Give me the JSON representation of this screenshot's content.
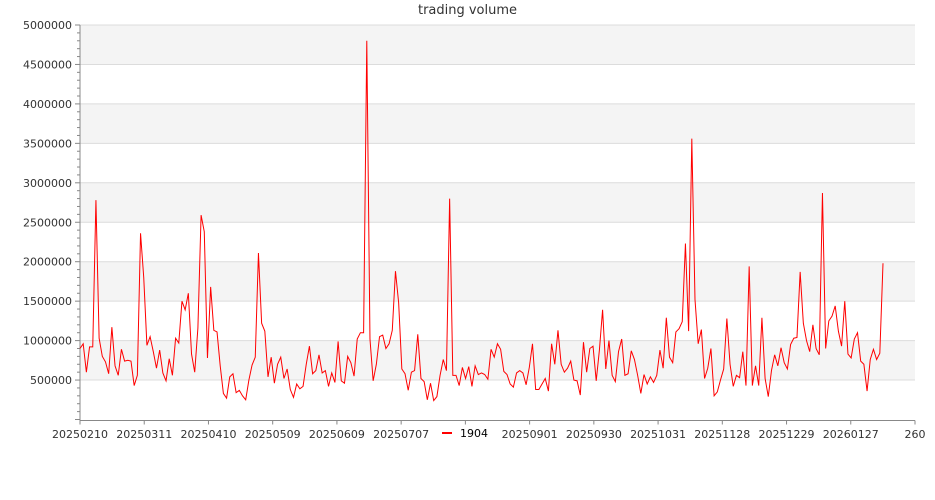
{
  "chart_data": {
    "type": "line",
    "title": "trading volume",
    "xlabel": "",
    "ylabel": "",
    "ylim": [
      0,
      5000000
    ],
    "yticks": [
      500000,
      1000000,
      1500000,
      2000000,
      2500000,
      3000000,
      3500000,
      4000000,
      4500000,
      5000000
    ],
    "xtick_labels": [
      "20250210",
      "20250311",
      "20250410",
      "20250509",
      "20250609",
      "20250707",
      "",
      "20250901",
      "20250930",
      "20251031",
      "20251128",
      "20251229",
      "20260127",
      "260"
    ],
    "grid": "horizontal, alternating bands",
    "legend": "bottom-center",
    "series": [
      {
        "name": "1904",
        "color": "#ff0000",
        "values": [
          900000,
          960000,
          600000,
          920000,
          920000,
          2780000,
          1030000,
          800000,
          730000,
          580000,
          1170000,
          680000,
          560000,
          890000,
          740000,
          750000,
          740000,
          430000,
          560000,
          2360000,
          1800000,
          940000,
          1050000,
          860000,
          650000,
          880000,
          590000,
          490000,
          770000,
          560000,
          1030000,
          970000,
          1500000,
          1390000,
          1600000,
          830000,
          600000,
          1160000,
          2590000,
          2380000,
          780000,
          1680000,
          1130000,
          1110000,
          680000,
          330000,
          270000,
          540000,
          580000,
          340000,
          370000,
          300000,
          250000,
          500000,
          690000,
          790000,
          2110000,
          1220000,
          1120000,
          540000,
          790000,
          460000,
          700000,
          790000,
          520000,
          640000,
          380000,
          280000,
          450000,
          390000,
          420000,
          700000,
          930000,
          580000,
          620000,
          820000,
          590000,
          620000,
          420000,
          590000,
          470000,
          990000,
          490000,
          460000,
          800000,
          720000,
          550000,
          1020000,
          1100000,
          1100000,
          4800000,
          1020000,
          490000,
          700000,
          1050000,
          1070000,
          900000,
          960000,
          1130000,
          1880000,
          1480000,
          640000,
          580000,
          370000,
          600000,
          620000,
          1080000,
          520000,
          480000,
          250000,
          460000,
          240000,
          290000,
          560000,
          760000,
          620000,
          2800000,
          560000,
          560000,
          430000,
          660000,
          520000,
          670000,
          420000,
          680000,
          570000,
          590000,
          570000,
          510000,
          890000,
          790000,
          960000,
          890000,
          610000,
          570000,
          450000,
          410000,
          590000,
          620000,
          590000,
          440000,
          660000,
          960000,
          380000,
          380000,
          450000,
          520000,
          360000,
          960000,
          700000,
          1130000,
          700000,
          600000,
          650000,
          740000,
          500000,
          490000,
          310000,
          980000,
          600000,
          900000,
          930000,
          490000,
          880000,
          1390000,
          640000,
          1000000,
          560000,
          480000,
          860000,
          1020000,
          560000,
          580000,
          870000,
          760000,
          560000,
          330000,
          570000,
          450000,
          540000,
          470000,
          560000,
          880000,
          650000,
          1290000,
          790000,
          720000,
          1110000,
          1150000,
          1240000,
          2230000,
          1120000,
          3560000,
          1520000,
          960000,
          1140000,
          520000,
          650000,
          900000,
          300000,
          350000,
          500000,
          640000,
          1280000,
          700000,
          420000,
          560000,
          530000,
          860000,
          430000,
          1940000,
          430000,
          680000,
          430000,
          1290000,
          520000,
          290000,
          620000,
          820000,
          680000,
          910000,
          720000,
          640000,
          950000,
          1030000,
          1040000,
          1870000,
          1220000,
          1000000,
          860000,
          1200000,
          900000,
          820000,
          2870000,
          900000,
          1250000,
          1310000,
          1440000,
          1120000,
          930000,
          1500000,
          830000,
          780000,
          1020000,
          1100000,
          740000,
          700000,
          360000,
          760000,
          890000,
          760000,
          840000,
          1980000
        ]
      }
    ]
  }
}
